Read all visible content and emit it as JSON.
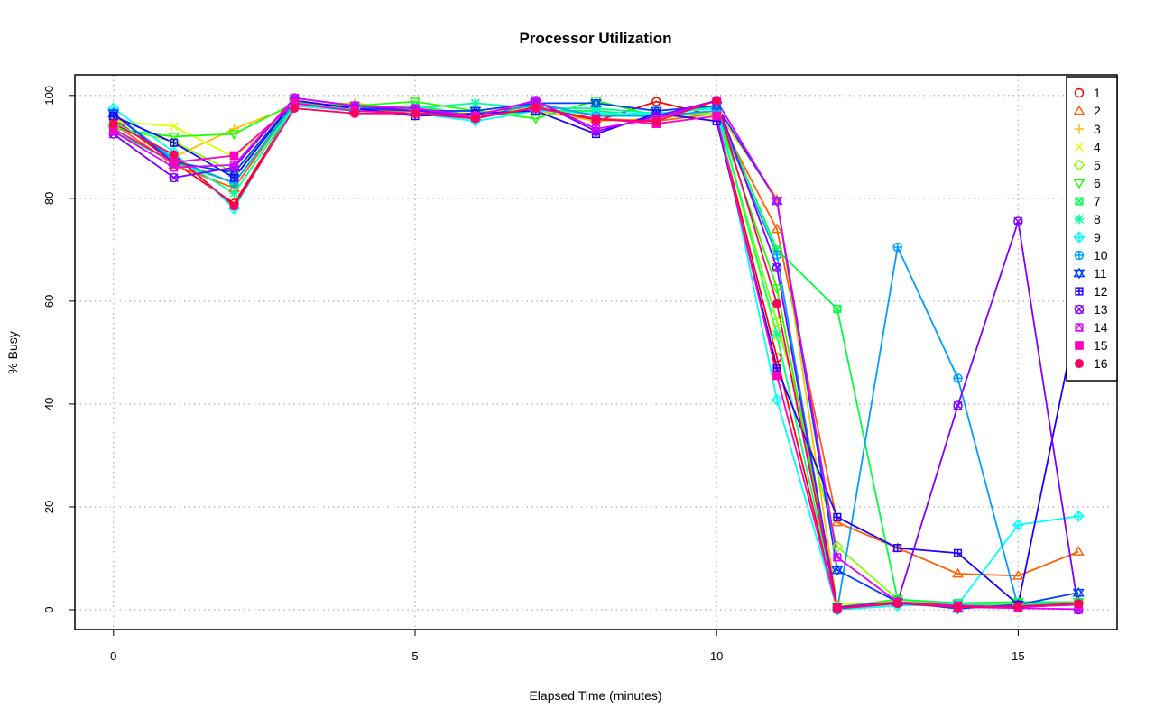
{
  "chart_data": {
    "type": "line",
    "title": "Processor Utilization",
    "xlabel": "Elapsed Time (minutes)",
    "ylabel": "% Busy",
    "xlim": [
      -0.64,
      16.64
    ],
    "ylim": [
      -3.86,
      104
    ],
    "x_ticks": [
      0,
      5,
      10,
      15
    ],
    "y_ticks": [
      0,
      20,
      40,
      60,
      80,
      100
    ],
    "grid": true,
    "legend_placement": "top-right",
    "x": [
      0,
      1,
      2,
      3,
      4,
      5,
      6,
      7,
      8,
      9,
      10,
      11,
      12,
      13,
      14,
      15,
      16
    ],
    "series": [
      {
        "name": "1",
        "color": "#FF0000",
        "marker": "circle",
        "values": [
          95.5,
          87,
          79,
          98,
          97,
          96.5,
          96.5,
          98,
          95,
          98.8,
          96,
          49,
          0.3,
          1.5,
          0.5,
          1,
          1.5
        ]
      },
      {
        "name": "2",
        "color": "#FF6000",
        "marker": "triangle",
        "values": [
          94.5,
          86.5,
          82,
          98.5,
          97,
          97,
          96,
          97.5,
          95.5,
          95,
          96.5,
          74,
          17,
          12,
          7,
          6.6,
          11.3
        ]
      },
      {
        "name": "3",
        "color": "#FFBF00",
        "marker": "plus",
        "values": [
          96,
          88,
          93.5,
          98,
          98.5,
          97,
          96,
          97,
          95,
          95.5,
          97,
          80,
          1,
          1.5,
          1,
          1.2,
          1.5
        ]
      },
      {
        "name": "4",
        "color": "#DFFF00",
        "marker": "cross",
        "values": [
          95,
          94,
          88,
          98,
          97.5,
          97,
          96.5,
          97.5,
          96,
          96,
          97,
          53,
          1,
          1.5,
          1,
          1,
          1.5
        ]
      },
      {
        "name": "5",
        "color": "#80FF00",
        "marker": "diamond",
        "values": [
          94,
          91,
          85,
          98,
          97.5,
          98,
          96,
          97,
          96.5,
          96,
          96.5,
          56,
          12.3,
          2,
          1,
          1,
          1.5
        ]
      },
      {
        "name": "6",
        "color": "#20FF00",
        "marker": "triangle-down",
        "values": [
          93.5,
          92,
          92.5,
          98.5,
          98,
          98.8,
          97,
          95.5,
          99,
          96,
          97,
          62.5,
          0.5,
          2,
          1.2,
          1.5,
          1.5
        ]
      },
      {
        "name": "7",
        "color": "#00FF40",
        "marker": "square-cross",
        "values": [
          93,
          87,
          83,
          98,
          97.5,
          98,
          96,
          97,
          97,
          96,
          98,
          70,
          58.5,
          2,
          1.3,
          1.5,
          1.5
        ]
      },
      {
        "name": "8",
        "color": "#00FF9F",
        "marker": "asterisk",
        "values": [
          95,
          88,
          81,
          98,
          97.5,
          97.5,
          98.5,
          97.5,
          97.5,
          96.5,
          97.5,
          53.5,
          0.3,
          1.5,
          1,
          1,
          1.2
        ]
      },
      {
        "name": "9",
        "color": "#00FFFF",
        "marker": "diamond-plus",
        "values": [
          97.5,
          89,
          78,
          98,
          97,
          96.5,
          95,
          97,
          96.5,
          96.5,
          97.5,
          40.8,
          0,
          0.8,
          1,
          16.5,
          18.2
        ]
      },
      {
        "name": "10",
        "color": "#009FFF",
        "marker": "circle-plus",
        "values": [
          96.5,
          87.5,
          83,
          98.5,
          97,
          96.5,
          95.5,
          98.5,
          96,
          96,
          97,
          69,
          0,
          70.5,
          45,
          0.5,
          1
        ]
      },
      {
        "name": "11",
        "color": "#0040FF",
        "marker": "star-of-david",
        "values": [
          96.5,
          87,
          85,
          99,
          97.5,
          97,
          97,
          98.5,
          98.5,
          97,
          98,
          79.5,
          7.7,
          1.5,
          0.2,
          1,
          3.3
        ]
      },
      {
        "name": "12",
        "color": "#2000FF",
        "marker": "square-plus",
        "values": [
          96,
          90.8,
          84,
          99,
          97.5,
          96,
          96.5,
          97,
          92.5,
          96.5,
          95,
          47,
          18,
          12,
          11,
          1,
          58
        ]
      },
      {
        "name": "13",
        "color": "#8000FF",
        "marker": "circle-cross",
        "values": [
          92.5,
          84,
          86,
          99.5,
          98,
          97,
          96,
          99,
          93,
          96,
          99,
          66.5,
          0.5,
          1.5,
          39.7,
          75.5,
          0
        ]
      },
      {
        "name": "14",
        "color": "#DF00FF",
        "marker": "square-triangle",
        "values": [
          93,
          86,
          86.5,
          99.5,
          98,
          97.5,
          96,
          99,
          93.5,
          95.5,
          99,
          79.5,
          10.2,
          1.5,
          0.5,
          0.3,
          0.1
        ]
      },
      {
        "name": "15",
        "color": "#FF00BF",
        "marker": "filled-square",
        "values": [
          93.5,
          87,
          88.3,
          98.5,
          97,
          96.5,
          95.8,
          97.5,
          95.5,
          94.5,
          96,
          45.5,
          0.2,
          1.5,
          0.8,
          0.5,
          1
        ]
      },
      {
        "name": "16",
        "color": "#FF0060",
        "marker": "filled-circle",
        "values": [
          94.5,
          88.5,
          78.5,
          97.5,
          96.5,
          96.5,
          95.5,
          97.7,
          95.3,
          95,
          99,
          59.5,
          0.2,
          1.2,
          0.5,
          0.7,
          1.2
        ]
      }
    ]
  }
}
